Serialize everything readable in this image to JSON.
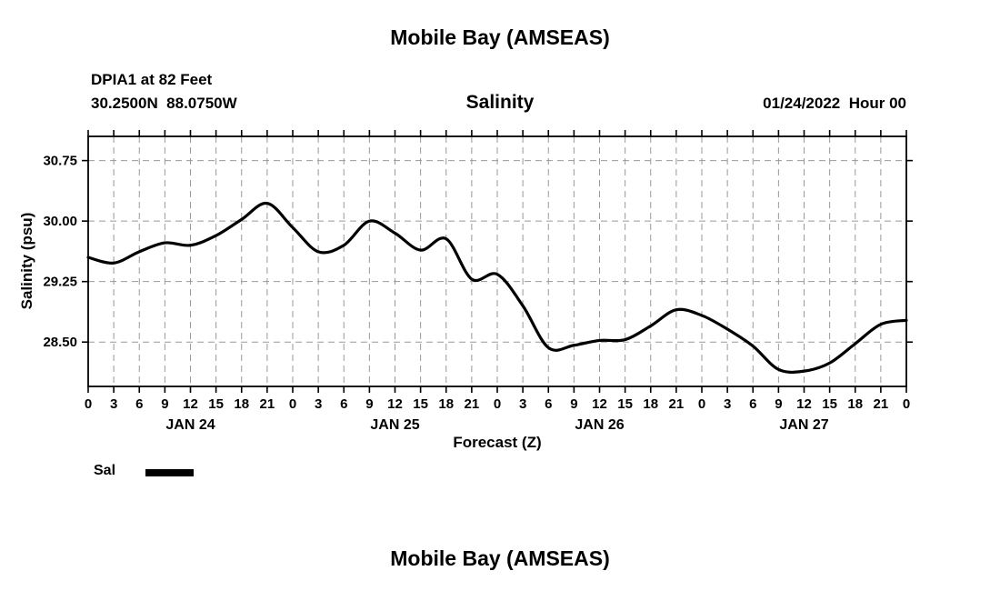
{
  "header": {
    "title": "Mobile Bay (AMSEAS)",
    "station_line": "DPIA1 at 82 Feet",
    "coords_line": "30.2500N  88.0750W",
    "chart_subtitle": "Salinity",
    "run_datetime": "01/24/2022  Hour 00"
  },
  "chart_data": {
    "type": "line",
    "title": "Salinity",
    "xlabel": "Forecast (Z)",
    "ylabel": "Salinity (psu)",
    "xlim": [
      0,
      96
    ],
    "ylim": [
      27.95,
      31.05
    ],
    "xtick_step": 3,
    "xtick_label_mod": 24,
    "yticks": [
      28.5,
      29.25,
      30.0,
      30.75
    ],
    "grid": "dashed",
    "line_color": "#000000",
    "x_hours": [
      0,
      3,
      6,
      9,
      12,
      15,
      18,
      21,
      24,
      27,
      30,
      33,
      36,
      39,
      42,
      45,
      48,
      51,
      54,
      57,
      60,
      63,
      66,
      69,
      72,
      75,
      78,
      81,
      84,
      87,
      90,
      93,
      96
    ],
    "series": [
      {
        "name": "Sal",
        "values": [
          29.55,
          29.48,
          29.62,
          29.73,
          29.7,
          29.82,
          30.02,
          30.22,
          29.92,
          29.62,
          29.7,
          30.0,
          29.85,
          29.64,
          29.78,
          29.28,
          29.34,
          28.95,
          28.43,
          28.46,
          28.52,
          28.53,
          28.7,
          28.9,
          28.83,
          28.66,
          28.45,
          28.16,
          28.14,
          28.24,
          28.48,
          28.72,
          28.77
        ]
      }
    ],
    "day_labels": [
      {
        "label": "JAN 24",
        "center_hour": 12
      },
      {
        "label": "JAN 25",
        "center_hour": 36
      },
      {
        "label": "JAN 26",
        "center_hour": 60
      },
      {
        "label": "JAN 27",
        "center_hour": 84
      }
    ],
    "legend_position": "bottom-left"
  },
  "legend": {
    "label": "Sal"
  },
  "footer": {
    "next_chart_title": "Mobile Bay (AMSEAS)"
  }
}
